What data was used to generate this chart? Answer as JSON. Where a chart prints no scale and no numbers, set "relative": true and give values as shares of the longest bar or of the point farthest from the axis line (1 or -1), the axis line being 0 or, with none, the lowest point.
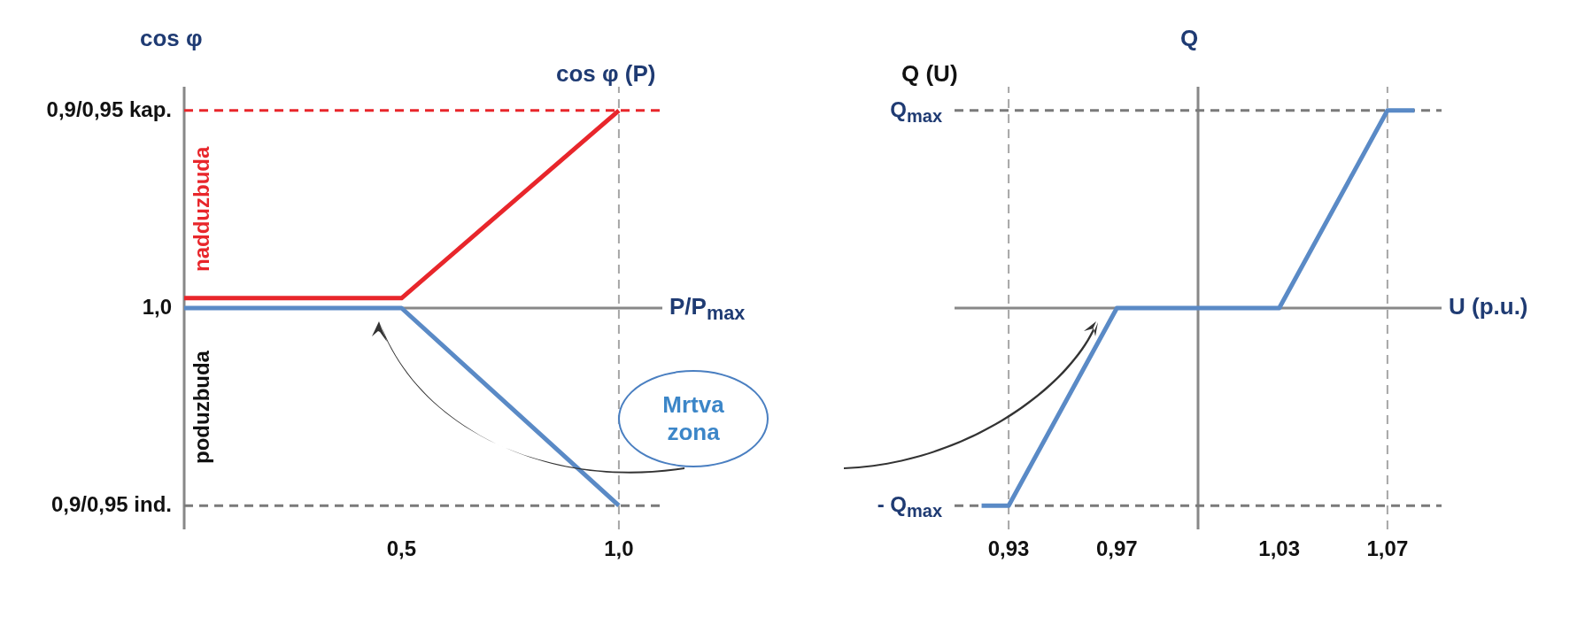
{
  "chart_data": [
    {
      "type": "line",
      "relative": true,
      "title": "cos φ (P)",
      "xlabel": "P/P$_{max}$",
      "ylabel": "cos φ",
      "xlim": [
        0,
        1.1
      ],
      "xticks": [
        {
          "value": 0.5,
          "label": "0,5"
        },
        {
          "value": 1,
          "label": "1,0"
        }
      ],
      "series": [
        {
          "color": "#e8262b",
          "x": [
            0,
            0.5,
            1
          ],
          "values": [
            0.525,
            0.525,
            1
          ]
        },
        {
          "color": "#5a8ac6",
          "x": [
            0,
            0.5,
            1
          ],
          "values": [
            0.5,
            0.5,
            0
          ]
        }
      ],
      "ref_lines": [
        {
          "axis": "x",
          "value": 0,
          "color": "#888888",
          "line_style": "solid"
        },
        {
          "axis": "y",
          "value": 0.5,
          "color": "#888888",
          "line_style": "solid"
        },
        {
          "axis": "y",
          "value": 1,
          "color": "#e8262b",
          "line_style": "dashed"
        },
        {
          "axis": "y",
          "value": 0,
          "color": "#7a7a7a",
          "line_style": "dashed"
        },
        {
          "axis": "x",
          "value": 1,
          "color": "#a6a6a6",
          "line_style": "dashed"
        }
      ],
      "annotations": [
        "0,9/0,95 kap.",
        "1,0",
        "0,9/0,95 ind.",
        "nadduzbuda",
        "poduzbuda"
      ]
    },
    {
      "type": "line",
      "relative": true,
      "title": "Q (U)",
      "xlabel": "U (p.u.)",
      "ylabel": "Q",
      "xlim": [
        0.91,
        1.09
      ],
      "xticks": [
        {
          "value": 0.93,
          "label": "0,93"
        },
        {
          "value": 0.97,
          "label": "0,97"
        },
        {
          "value": 1.03,
          "label": "1,03"
        },
        {
          "value": 1.07,
          "label": "1,07"
        }
      ],
      "series": [
        {
          "color": "#5a8ac6",
          "x": [
            0.92,
            0.93,
            0.97,
            1.03,
            1.07,
            1.08
          ],
          "values": [
            0,
            0,
            0.5,
            0.5,
            1,
            1
          ]
        }
      ],
      "ref_lines": [
        {
          "axis": "x",
          "value": 1,
          "color": "#888888",
          "line_style": "solid"
        },
        {
          "axis": "y",
          "value": 0.5,
          "color": "#888888",
          "line_style": "solid"
        },
        {
          "axis": "x",
          "value": 0.93,
          "color": "#a6a6a6",
          "line_style": "dashed"
        },
        {
          "axis": "x",
          "value": 1.07,
          "color": "#a6a6a6",
          "line_style": "dashed"
        },
        {
          "axis": "y",
          "value": 1,
          "color": "#7a7a7a",
          "line_style": "dashed"
        },
        {
          "axis": "y",
          "value": 0,
          "color": "#7a7a7a",
          "line_style": "dashed"
        }
      ],
      "annotations": [
        "Q$_{max}$",
        "- Q$_{max}$",
        "Mrtva zona"
      ]
    }
  ]
}
